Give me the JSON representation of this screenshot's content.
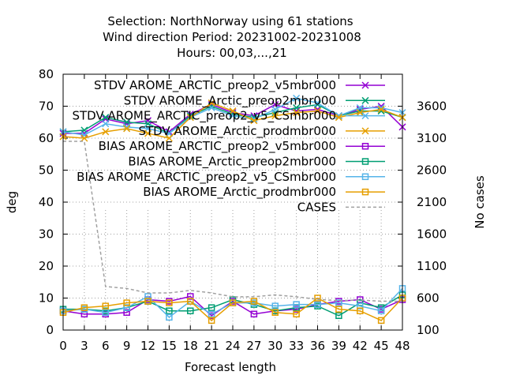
{
  "chart_data": {
    "type": "line",
    "title_lines": [
      "Selection: NorthNorway using    61 stations",
      "Wind direction   Period: 20231002-20231008",
      "Hours:  00,03,...,21"
    ],
    "xlabel": "Forecast length",
    "ylabel": "deg",
    "y2label": "No cases",
    "x": [
      0,
      3,
      6,
      9,
      12,
      15,
      18,
      21,
      24,
      27,
      30,
      33,
      36,
      39,
      42,
      45,
      48
    ],
    "xticks": [
      "0",
      "3",
      "6",
      "9",
      "12",
      "15",
      "18",
      "21",
      "24",
      "27",
      "30",
      "33",
      "36",
      "39",
      "42",
      "45",
      "48"
    ],
    "ylim": [
      0,
      80
    ],
    "yticks": [
      "0",
      "10",
      "20",
      "30",
      "40",
      "50",
      "60",
      "70",
      "80"
    ],
    "y2lim": [
      100,
      4100
    ],
    "y2ticks": [
      "100",
      "600",
      "1100",
      "1600",
      "2100",
      "2600",
      "3100",
      "3600"
    ],
    "grid": true,
    "legend_position": "top-right",
    "series": [
      {
        "name": "STDV AROME_ARCTIC_preop2_v5mbr000",
        "stat": "STDV",
        "color": "#9400d3",
        "marker": "x",
        "values": [
          61.5,
          61.5,
          66,
          64.5,
          65.5,
          62,
          67.5,
          70.5,
          68,
          67,
          70.5,
          68.5,
          69,
          67,
          69,
          70,
          63.5
        ]
      },
      {
        "name": "STDV AROME_Arctic_preop2mbr000",
        "stat": "STDV",
        "color": "#009e73",
        "marker": "x",
        "values": [
          62,
          62.5,
          66.5,
          65,
          64.5,
          61.5,
          67,
          70,
          67.5,
          66.5,
          68,
          69.5,
          70.5,
          67,
          68.5,
          68.5,
          66.5
        ]
      },
      {
        "name": "STDV AROME_ARCTIC_preop2_v5_CSmbr000",
        "stat": "STDV",
        "color": "#56b4e9",
        "marker": "x",
        "values": [
          62,
          61,
          64.5,
          63.5,
          63,
          61.5,
          66.5,
          69.5,
          67,
          66,
          69,
          72.5,
          71,
          67,
          69.5,
          69.5,
          68
        ]
      },
      {
        "name": "STDV AROME_Arctic_prodmbr000",
        "stat": "STDV",
        "color": "#e69f00",
        "marker": "x",
        "values": [
          60.5,
          60,
          62,
          63,
          61.5,
          60,
          66.5,
          71,
          68.5,
          65.5,
          67,
          68,
          68.5,
          66.5,
          68,
          69,
          66.5
        ]
      },
      {
        "name": "BIAS AROME_ARCTIC_preop2_v5mbr000",
        "stat": "BIAS",
        "color": "#9400d3",
        "marker": "s",
        "values": [
          6,
          5,
          5,
          5.5,
          9.5,
          9,
          10.5,
          4.5,
          9,
          5,
          6,
          6.5,
          8,
          9,
          9.5,
          6.5,
          9.5
        ]
      },
      {
        "name": "BIAS AROME_Arctic_preop2mbr000",
        "stat": "BIAS",
        "color": "#009e73",
        "marker": "s",
        "values": [
          6.5,
          6.5,
          6,
          7,
          9,
          6,
          6,
          7,
          9.5,
          8,
          6,
          7,
          7.5,
          4.5,
          8.5,
          7,
          11
        ]
      },
      {
        "name": "BIAS AROME_ARCTIC_preop2_v5_CSmbr000",
        "stat": "BIAS",
        "color": "#56b4e9",
        "marker": "s",
        "values": [
          6,
          6.5,
          5.5,
          7,
          10.5,
          4,
          9,
          5,
          8.5,
          8.5,
          7.5,
          8,
          8,
          8.5,
          7.5,
          6,
          13
        ]
      },
      {
        "name": "BIAS AROME_Arctic_prodmbr000",
        "stat": "BIAS",
        "color": "#e69f00",
        "marker": "s",
        "values": [
          5.5,
          7,
          7.5,
          8.5,
          9,
          8.5,
          9,
          3,
          8.5,
          9,
          5.5,
          5,
          10,
          6.5,
          6,
          3,
          10
        ]
      },
      {
        "name": "CASES",
        "stat": "CASES",
        "color": "#a0a0a0",
        "marker": "none",
        "axis": "y2",
        "values": [
          3050,
          3050,
          780,
          750,
          680,
          680,
          720,
          680,
          620,
          620,
          650,
          620,
          580,
          560,
          570,
          550,
          550
        ]
      }
    ]
  }
}
